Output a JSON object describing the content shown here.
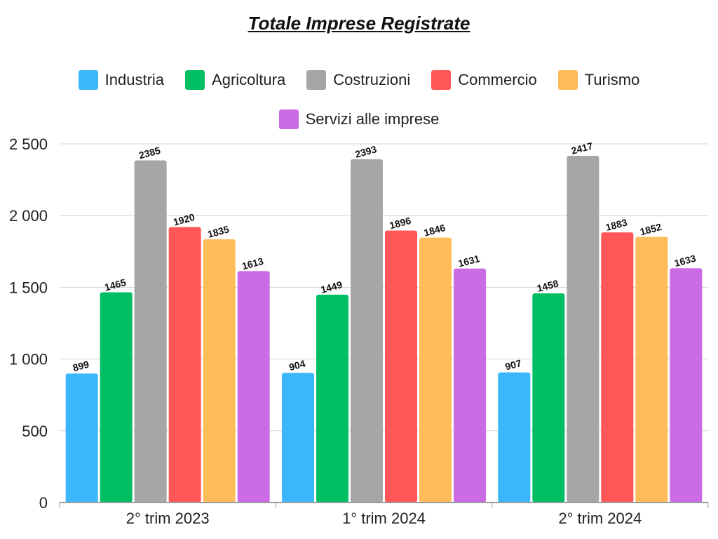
{
  "chart_data": {
    "type": "bar",
    "title": "Totale Imprese Registrate",
    "categories": [
      "2° trim 2023",
      "1° trim 2024",
      "2° trim 2024"
    ],
    "series": [
      {
        "name": "Industria",
        "color": "#3AB6FB",
        "values": [
          899,
          904,
          907
        ]
      },
      {
        "name": "Agricoltura",
        "color": "#00BF63",
        "values": [
          1465,
          1449,
          1458
        ]
      },
      {
        "name": "Costruzioni",
        "color": "#A6A6A6",
        "values": [
          2385,
          2393,
          2417
        ]
      },
      {
        "name": "Commercio",
        "color": "#FF5757",
        "values": [
          1920,
          1896,
          1883
        ]
      },
      {
        "name": "Turismo",
        "color": "#FFBD59",
        "values": [
          1835,
          1846,
          1852
        ]
      },
      {
        "name": "Servizi alle imprese",
        "color": "#CB6CE6",
        "values": [
          1613,
          1631,
          1633
        ]
      }
    ],
    "yticks": [
      0,
      500,
      1000,
      1500,
      2000,
      2500
    ],
    "ytick_labels": [
      "0",
      "500",
      "1 000",
      "1 500",
      "2 000",
      "2 500"
    ],
    "ylim": [
      0,
      2500
    ],
    "grid": true,
    "legend_position": "top"
  }
}
